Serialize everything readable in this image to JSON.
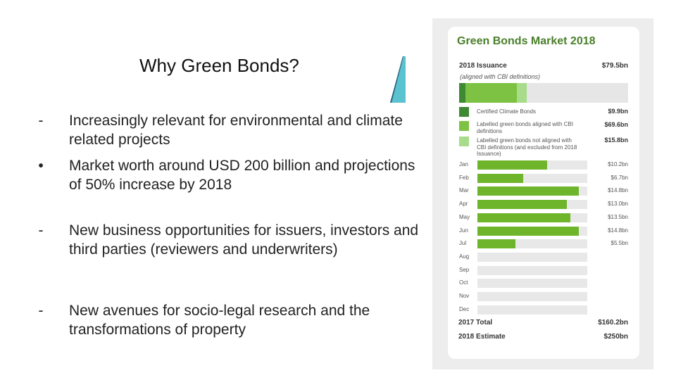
{
  "slide": {
    "title": "Why Green Bonds?",
    "bullets": [
      {
        "marker": "-",
        "text": "Increasingly relevant for environmental and climate related projects"
      },
      {
        "marker": "•",
        "text": "Market worth around USD 200 billion and projections of 50% increase by 2018"
      },
      {
        "marker": "-",
        "text": "New business opportunities for issuers, investors and third parties (reviewers and underwriters)"
      },
      {
        "marker": "-",
        "text": "New avenues for socio-legal research and the transformations of property"
      }
    ]
  },
  "colors": {
    "accent_blue": "#5bc2d0",
    "title_green": "#4a7f2a",
    "certified": "#3e8a33",
    "labeled_aligned": "#7dc242",
    "labeled_not_aligned": "#a8dc8a",
    "monthly_bar": "#6fb52b"
  },
  "infographic": {
    "title": "Green Bonds Market 2018",
    "issuance_label": "2018 Issuance",
    "issuance_value": "$79.5bn",
    "issuance_sub": "(aligned with CBI definitions)",
    "legend": [
      {
        "label": "Certified Climate Bonds",
        "value": "$9.9bn"
      },
      {
        "label": "Labelled green bonds aligned with CBI definitions",
        "value": "$69.6bn"
      },
      {
        "label": "Labelled green bonds not aligned with CBI definitions (and excluded from 2018 Issuance)",
        "value": "$15.8bn"
      }
    ],
    "total_label": "2017 Total",
    "total_value": "$160.2bn",
    "estimate_label": "2018 Estimate",
    "estimate_value": "$250bn"
  },
  "chart_data": {
    "type": "bar",
    "title": "Green Bonds Market 2018",
    "categories": [
      "Jan",
      "Feb",
      "Mar",
      "Apr",
      "May",
      "Jun",
      "Jul",
      "Aug",
      "Sep",
      "Oct",
      "Nov",
      "Dec"
    ],
    "values": [
      10.2,
      6.7,
      14.8,
      13.0,
      13.5,
      14.8,
      5.5,
      null,
      null,
      null,
      null,
      null
    ],
    "value_labels": [
      "$10.2bn",
      "$6.7bn",
      "$14.8bn",
      "$13.0bn",
      "$13.5bn",
      "$14.8bn",
      "$5.5bn",
      "",
      "",
      "",
      "",
      ""
    ],
    "xlim": [
      0,
      16
    ],
    "stacked_issuance": [
      {
        "name": "Certified Climate Bonds",
        "value": 9.9
      },
      {
        "name": "Labelled green bonds aligned with CBI definitions",
        "value": 69.6
      },
      {
        "name": "Labelled green bonds not aligned with CBI definitions (and excluded from 2018 Issuance)",
        "value": 15.8
      }
    ]
  }
}
